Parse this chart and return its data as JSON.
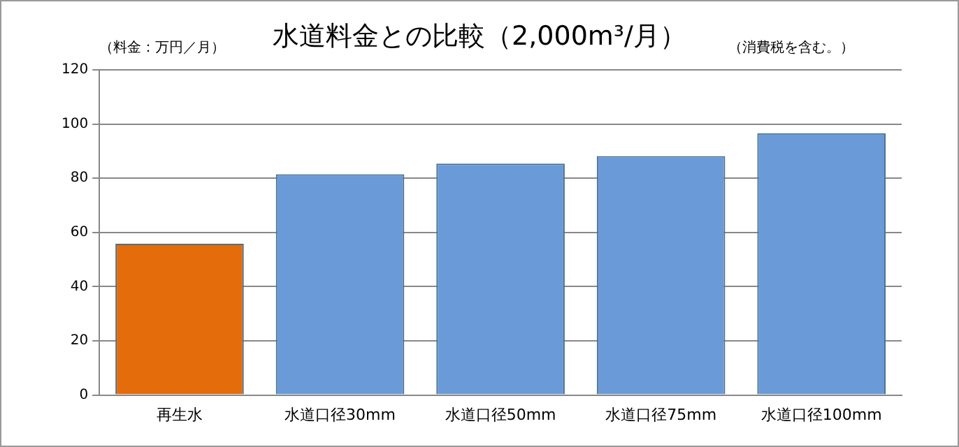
{
  "chart_data": {
    "type": "bar",
    "title": "水道料金との比較（2,000m³/月）",
    "ylabel": "（料金：万円／月）",
    "annotations": [
      "（消費税を含む。）"
    ],
    "categories": [
      "再生水",
      "水道口径30mm",
      "水道口径50mm",
      "水道口径75mm",
      "水道口径100mm"
    ],
    "values": [
      55.8,
      81.5,
      85.4,
      88.2,
      96.6
    ],
    "colors": [
      "#e46c0a",
      "#6a9bd8",
      "#6a9bd8",
      "#6a9bd8",
      "#6a9bd8"
    ],
    "ylim": [
      0,
      120
    ],
    "yticks": [
      0,
      20,
      40,
      60,
      80,
      100,
      120
    ],
    "grid": "y",
    "legend": false
  }
}
